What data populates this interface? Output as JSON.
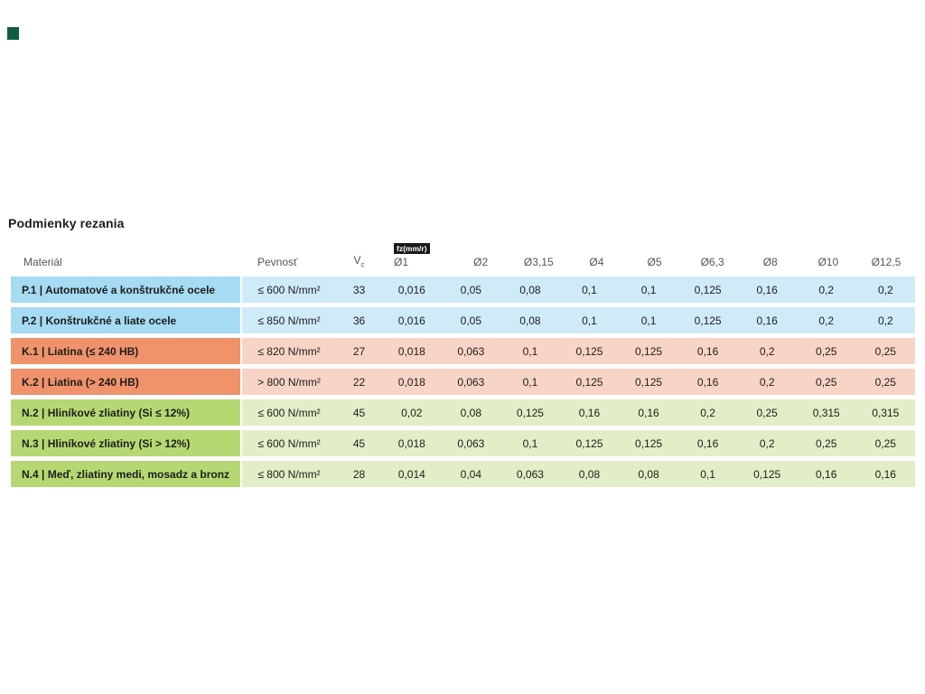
{
  "page": {
    "title": "Podmienky rezania"
  },
  "colors": {
    "logo_mark": "#115c43",
    "steel_material": "#a5dbf3",
    "steel_band": "#d0ebf8",
    "cast_iron_material": "#f0926c",
    "cast_iron_band": "#f8d4c6",
    "nonferrous_material": "#b6d873",
    "nonferrous_band": "#e2eec7",
    "badge_bg": "#1a1a1a",
    "badge_text": "#ffffff",
    "header_text": "#54565a",
    "body_text": "#1d1d1b"
  },
  "table": {
    "header": {
      "material": "Materiál",
      "pevnost": "Pevnosť",
      "vc_main": "V",
      "vc_sub": "c",
      "fz_unit": "fz(mm/r)",
      "diameters": [
        "Ø1",
        "Ø2",
        "Ø3,15",
        "Ø4",
        "Ø5",
        "Ø6,3",
        "Ø8",
        "Ø10",
        "Ø12,5"
      ]
    },
    "rows": [
      {
        "material": "P.1 | Automatové a konštrukčné ocele",
        "pevnost": "≤ 600 N/mm²",
        "vc": "33",
        "fz": [
          "0,016",
          "0,05",
          "0,08",
          "0,1",
          "0,1",
          "0,125",
          "0,16",
          "0,2",
          "0,2"
        ]
      },
      {
        "material": "P.2 | Konštrukčné a liate ocele",
        "pevnost": "≤ 850 N/mm²",
        "vc": "36",
        "fz": [
          "0,016",
          "0,05",
          "0,08",
          "0,1",
          "0,1",
          "0,125",
          "0,16",
          "0,2",
          "0,2"
        ]
      },
      {
        "material": "K.1 | Liatina (≤ 240 HB)",
        "pevnost": "≤ 820 N/mm²",
        "vc": "27",
        "fz": [
          "0,018",
          "0,063",
          "0,1",
          "0,125",
          "0,125",
          "0,16",
          "0,2",
          "0,25",
          "0,25"
        ]
      },
      {
        "material": "K.2 | Liatina (> 240 HB)",
        "pevnost": "> 800 N/mm²",
        "vc": "22",
        "fz": [
          "0,018",
          "0,063",
          "0,1",
          "0,125",
          "0,125",
          "0,16",
          "0,2",
          "0,25",
          "0,25"
        ]
      },
      {
        "material": "N.2 | Hliníkové zliatiny (Si ≤ 12%)",
        "pevnost": "≤ 600 N/mm²",
        "vc": "45",
        "fz": [
          "0,02",
          "0,08",
          "0,125",
          "0,16",
          "0,16",
          "0,2",
          "0,25",
          "0,315",
          "0,315"
        ]
      },
      {
        "material": "N.3 | Hliníkové zliatiny (Si > 12%)",
        "pevnost": "≤ 600 N/mm²",
        "vc": "45",
        "fz": [
          "0,018",
          "0,063",
          "0,1",
          "0,125",
          "0,125",
          "0,16",
          "0,2",
          "0,25",
          "0,25"
        ]
      },
      {
        "material": "N.4 | Meď, zliatiny medi, mosadz a bronz",
        "pevnost": "≤ 800 N/mm²",
        "vc": "28",
        "fz": [
          "0,014",
          "0,04",
          "0,063",
          "0,08",
          "0,08",
          "0,1",
          "0,125",
          "0,16",
          "0,16"
        ]
      }
    ]
  }
}
